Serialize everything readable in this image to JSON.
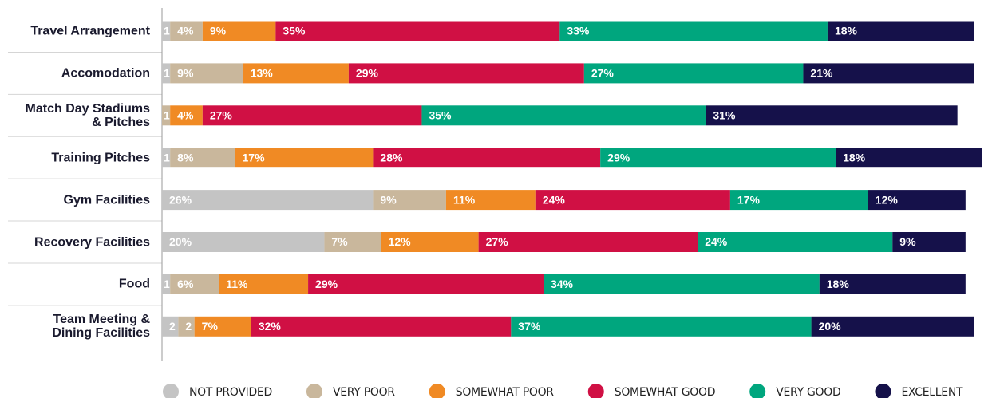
{
  "chart_data": {
    "type": "stacked-bar-horizontal",
    "categories": [
      "Travel Arrangement",
      "Accomodation",
      "Match Day Stadiums\n& Pitches",
      "Training Pitches",
      "Gym Facilities",
      "Recovery Facilities",
      "Food",
      "Team Meeting &\nDining Facilities"
    ],
    "xlim": [
      0,
      100
    ],
    "legend": "bottom",
    "series": [
      {
        "name": "NOT PROVIDED",
        "color": "#c4c4c4",
        "values": [
          1,
          1,
          null,
          1,
          26,
          20,
          1,
          2
        ],
        "value_labels": [
          "1",
          "1",
          null,
          "1",
          "26%",
          "20%",
          "1",
          "2"
        ]
      },
      {
        "name": "VERY POOR",
        "color": "#c9b79c",
        "values": [
          4,
          9,
          1,
          8,
          9,
          7,
          6,
          2
        ],
        "value_labels": [
          "4%",
          "9%",
          "1",
          "8%",
          "9%",
          "7%",
          "6%",
          "2"
        ]
      },
      {
        "name": "SOMEWHAT POOR",
        "color": "#f08a24",
        "values": [
          9,
          13,
          4,
          17,
          11,
          12,
          11,
          7
        ],
        "value_labels": [
          "9%",
          "13%",
          "4%",
          "17%",
          "11%",
          "12%",
          "11%",
          "7%"
        ]
      },
      {
        "name": "SOMEWHAT GOOD",
        "color": "#d01044",
        "values": [
          35,
          29,
          27,
          28,
          24,
          27,
          29,
          32
        ],
        "value_labels": [
          "35%",
          "29%",
          "27%",
          "28%",
          "24%",
          "27%",
          "29%",
          "32%"
        ]
      },
      {
        "name": "VERY GOOD",
        "color": "#00a67e",
        "values": [
          33,
          27,
          35,
          29,
          17,
          24,
          34,
          37
        ],
        "value_labels": [
          "33%",
          "27%",
          "35%",
          "29%",
          "17%",
          "24%",
          "34%",
          "37%"
        ]
      },
      {
        "name": "EXCELLENT",
        "color": "#15114a",
        "values": [
          18,
          21,
          31,
          18,
          12,
          9,
          18,
          20
        ],
        "value_labels": [
          "18%",
          "21%",
          "31%",
          "18%",
          "12%",
          "9%",
          "18%",
          "20%"
        ]
      }
    ]
  }
}
